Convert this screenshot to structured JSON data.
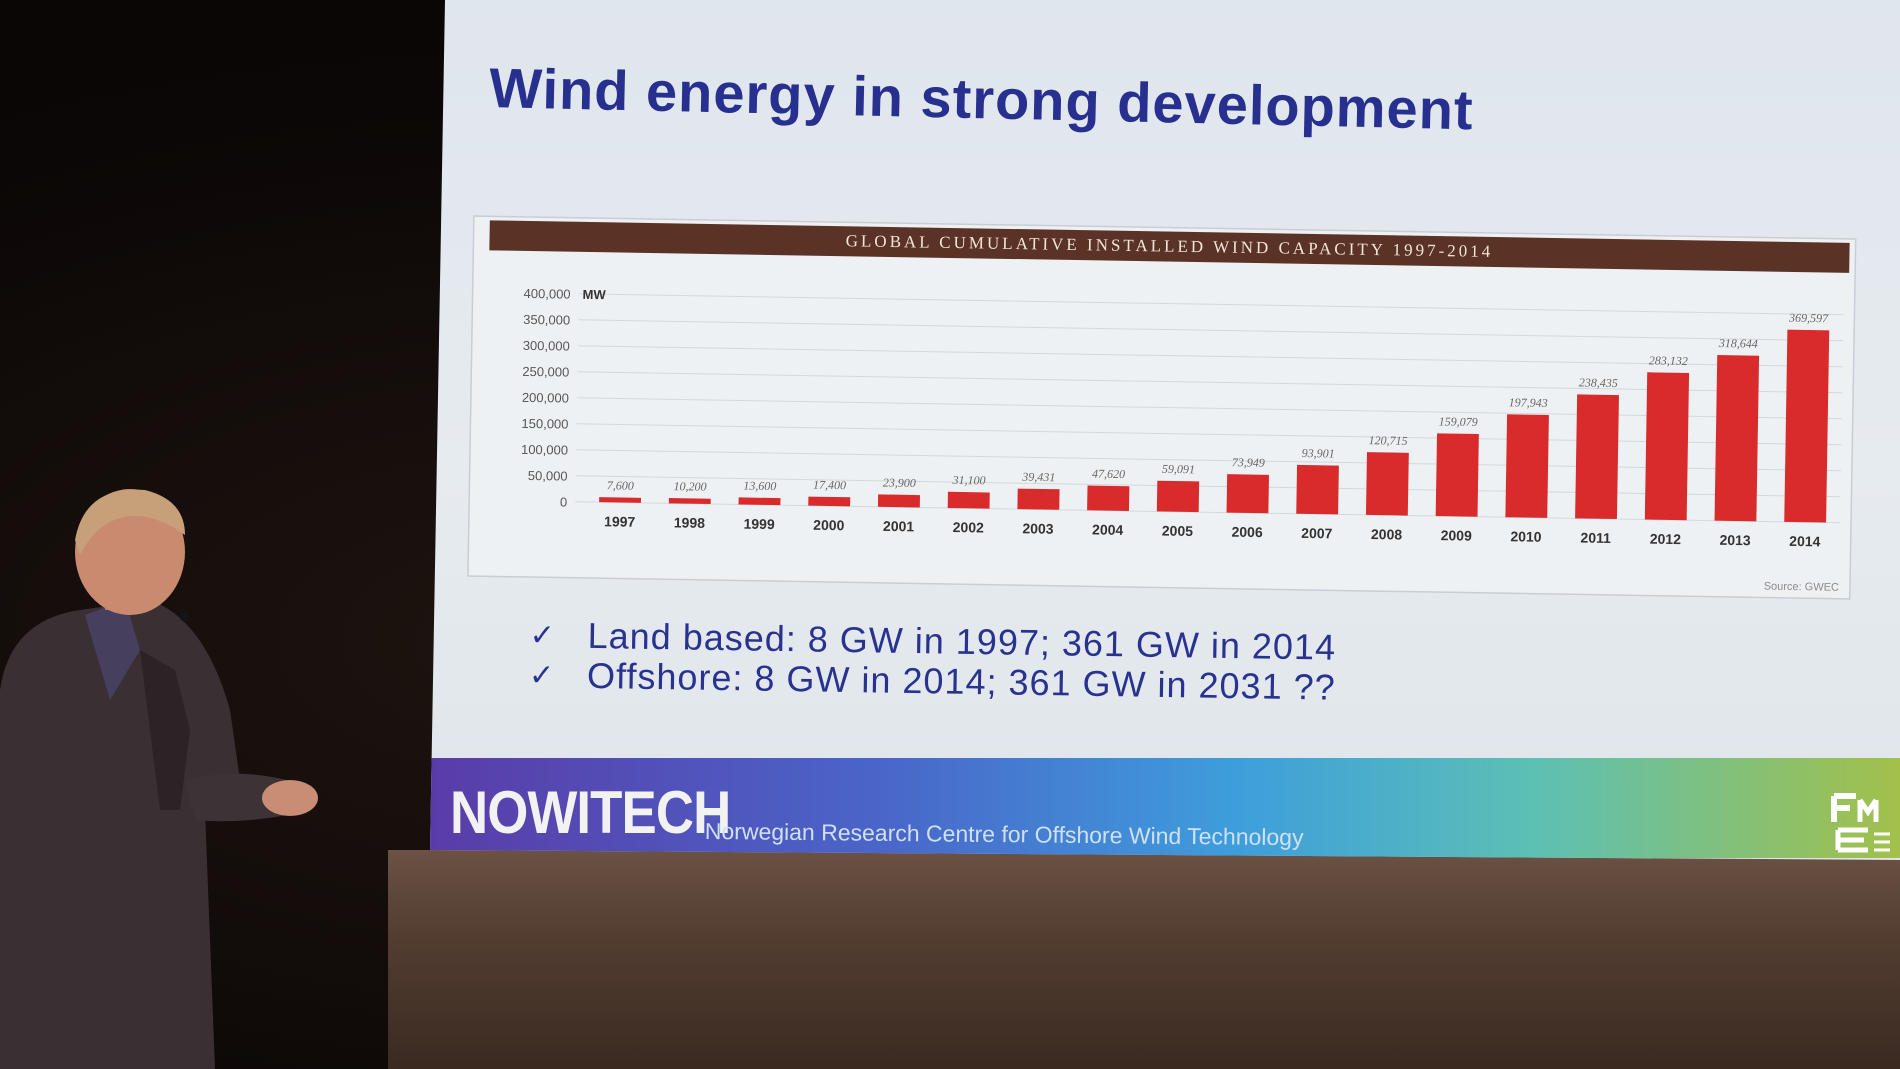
{
  "slide": {
    "title": "Wind energy in strong development",
    "bullets": [
      {
        "text": "Land based: 8 GW in 1997; 361 GW in 2014",
        "icon": "checkmark-icon"
      },
      {
        "text": "Offshore: 8 GW in 2014; 361 GW in 2031 ??",
        "icon": "checkmark-icon"
      }
    ],
    "banner": {
      "logo": "NOWITECH",
      "subtitle": "Norwegian Research Centre for Offshore Wind Technology",
      "badge_icon": "fme-logo-icon"
    }
  },
  "chart_data": {
    "type": "bar",
    "title": "GLOBAL CUMULATIVE INSTALLED WIND CAPACITY 1997-2014",
    "ylabel": "MW",
    "ylim": [
      0,
      400000
    ],
    "yticks": [
      "400,000",
      "350,000",
      "300,000",
      "250,000",
      "200,000",
      "150,000",
      "100,000",
      "50,000",
      "0"
    ],
    "categories": [
      "1997",
      "1998",
      "1999",
      "2000",
      "2001",
      "2002",
      "2003",
      "2004",
      "2005",
      "2006",
      "2007",
      "2008",
      "2009",
      "2010",
      "2011",
      "2012",
      "2013",
      "2014"
    ],
    "values": [
      7600,
      10200,
      13600,
      17400,
      23900,
      31100,
      39431,
      47620,
      59091,
      73949,
      93901,
      120715,
      159079,
      197943,
      238435,
      283132,
      318644,
      369597
    ],
    "value_labels": [
      "7,600",
      "10,200",
      "13,600",
      "17,400",
      "23,900",
      "31,100",
      "39,431",
      "47,620",
      "59,091",
      "73,949",
      "93,901",
      "120,715",
      "159,079",
      "197,943",
      "238,435",
      "283,132",
      "318,644",
      "369,597"
    ],
    "source": "Source: GWEC",
    "bar_color": "#d92b2b",
    "grid": true
  }
}
